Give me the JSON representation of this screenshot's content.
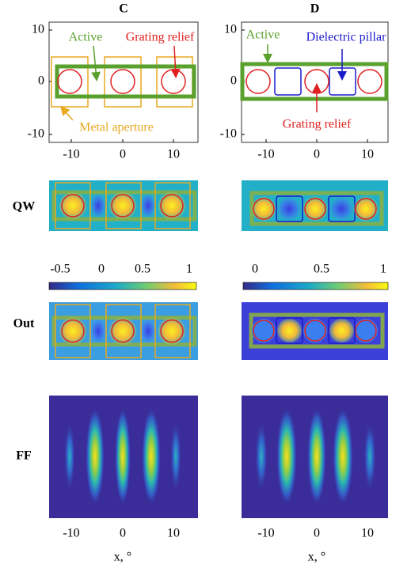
{
  "panels": [
    {
      "label": "C",
      "yticks": [
        "10",
        "0",
        "-10"
      ],
      "xticks": [
        "-10",
        "0",
        "10"
      ],
      "annotations": {
        "active": "Active",
        "grating": "Grating relief",
        "aperture": "Metal aperture"
      },
      "colorbar_ticks": [
        "-0.5",
        "0",
        "0.5",
        "1"
      ],
      "ff_xticks": [
        "-10",
        "0",
        "10"
      ]
    },
    {
      "label": "D",
      "yticks": [
        "10",
        "0",
        "-10"
      ],
      "xticks": [
        "-10",
        "0",
        "10"
      ],
      "annotations": {
        "active": "Active",
        "pillar": "Dielectric pillar",
        "grating": "Grating relief"
      },
      "colorbar_ticks": [
        "0",
        "0.5",
        "1"
      ],
      "ff_xticks": [
        "-10",
        "0",
        "10"
      ]
    }
  ],
  "row_labels": [
    "QW",
    "Out",
    "FF"
  ],
  "x_label": "x, °"
}
